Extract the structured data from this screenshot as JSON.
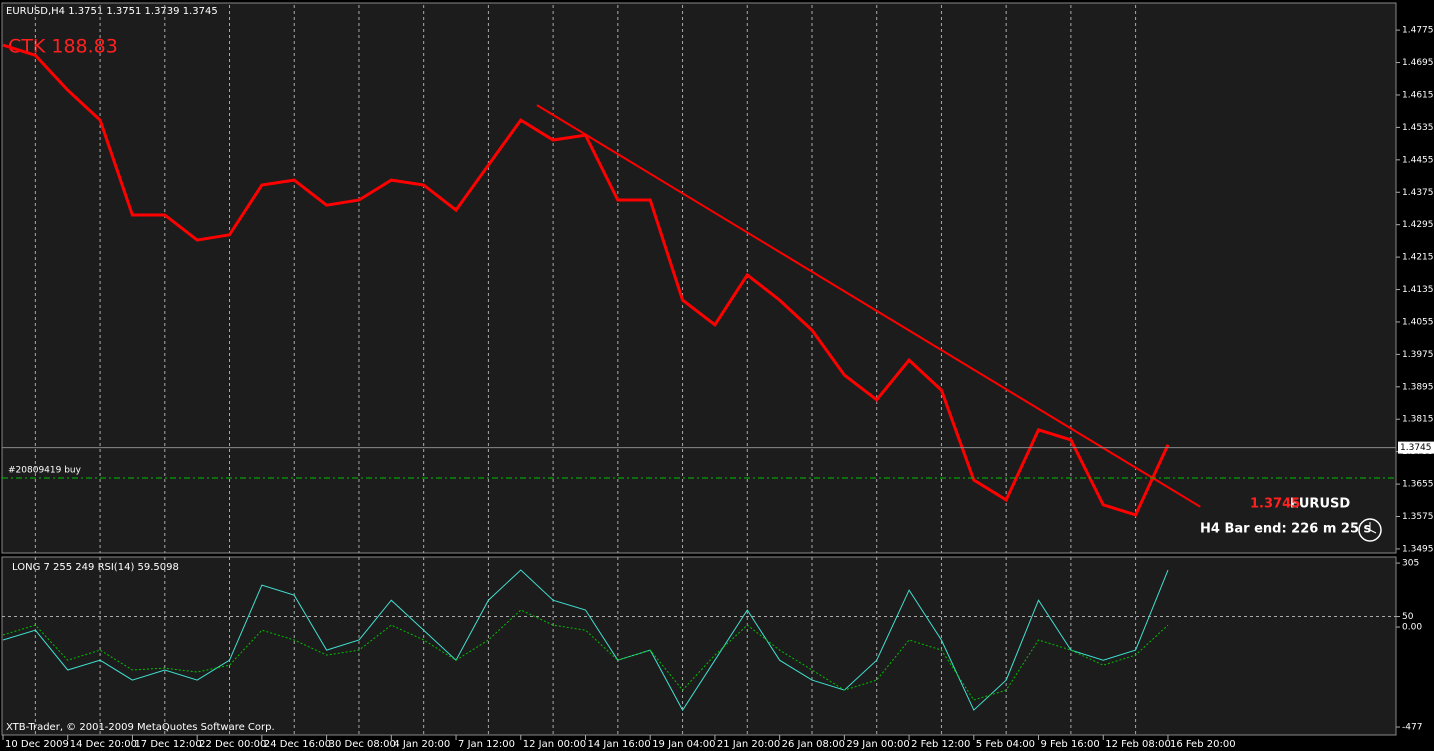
{
  "chart_data": [
    {
      "type": "line",
      "title": "EURUSD,H4  1.3751 1.3751 1.3739 1.3745",
      "annotation": "CTK  188.83",
      "categories": [
        "10 Dec 2009",
        null,
        "14 Dec 20:00",
        null,
        "17 Dec 12:00",
        null,
        "22 Dec 00:00",
        null,
        "24 Dec 16:00",
        null,
        "30 Dec 08:00",
        null,
        "4 Jan 20:00",
        null,
        "7 Jan 12:00",
        null,
        "12 Jan 00:00",
        null,
        "14 Jan 16:00",
        null,
        "19 Jan 04:00",
        null,
        "21 Jan 20:00",
        null,
        "26 Jan 08:00",
        null,
        "29 Jan 00:00",
        null,
        "2 Feb 12:00",
        null,
        "5 Feb 04:00",
        null,
        "9 Feb 16:00",
        null,
        "12 Feb 08:00",
        null,
        "16 Feb 20:00"
      ],
      "series": [
        {
          "color": "#ff0000",
          "values": [
            1.4738,
            1.4713,
            1.4627,
            1.4553,
            1.4319,
            1.4319,
            1.4257,
            1.427,
            1.4393,
            1.4405,
            1.4343,
            1.4356,
            1.4405,
            1.4393,
            1.4331,
            1.4442,
            1.4553,
            1.4504,
            1.4516,
            1.4356,
            1.4356,
            1.4109,
            1.4048,
            1.4171,
            1.4109,
            1.4035,
            1.3924,
            1.3863,
            1.3961,
            1.3887,
            1.3665,
            1.3616,
            1.3789,
            1.3764,
            1.3604,
            1.3579,
            1.3752
          ]
        }
      ],
      "ylim": [
        1.3485,
        1.4837
      ],
      "yticks": [
        1.4775,
        1.4695,
        1.4615,
        1.4535,
        1.4455,
        1.4375,
        1.4295,
        1.4215,
        1.4135,
        1.4055,
        1.3975,
        1.3895,
        1.3815,
        1.3735,
        1.3655,
        1.3575,
        1.3495
      ],
      "current_price": 1.3745,
      "symbol": "EURUSD",
      "bar_timer": "H4 Bar end: 226 m 25 s",
      "order": {
        "label": "#20809419 buy",
        "value": 1.367
      },
      "trendline": {
        "x": [
          16.5,
          37
        ],
        "values": [
          1.459,
          1.3599
        ],
        "color": "#ff0000"
      }
    },
    {
      "type": "line",
      "title": "LONG  7    255 249  RSI(14) 59.5098",
      "series": [
        {
          "color": "#40e0d0",
          "values": [
            -62,
            -15,
            -205,
            -158,
            -253,
            -205,
            -253,
            -158,
            200,
            152,
            -110,
            -62,
            128,
            -15,
            -158,
            128,
            272,
            128,
            81,
            -158,
            -110,
            -396,
            -158,
            81,
            -158,
            -253,
            -301,
            -158,
            176,
            -62,
            -396,
            -253,
            128,
            -110,
            -158,
            -110,
            272
          ]
        },
        {
          "color": "#00c000",
          "values": [
            -38,
            9,
            -158,
            -110,
            -205,
            -196,
            -215,
            -182,
            -15,
            -62,
            -134,
            -110,
            9,
            -62,
            -158,
            -62,
            81,
            9,
            -15,
            -158,
            -110,
            -301,
            -134,
            9,
            -110,
            -205,
            -301,
            -253,
            -62,
            -110,
            -348,
            -301,
            -62,
            -110,
            -182,
            -134,
            9
          ]
        }
      ],
      "ylim": [
        -515,
        334
      ],
      "yticks": [
        305,
        50,
        {
          "value": 0,
          "label": "0.00"
        },
        -477
      ]
    }
  ],
  "footer": "XTB-Trader, © 2001-2009 MetaQuotes Software Corp."
}
